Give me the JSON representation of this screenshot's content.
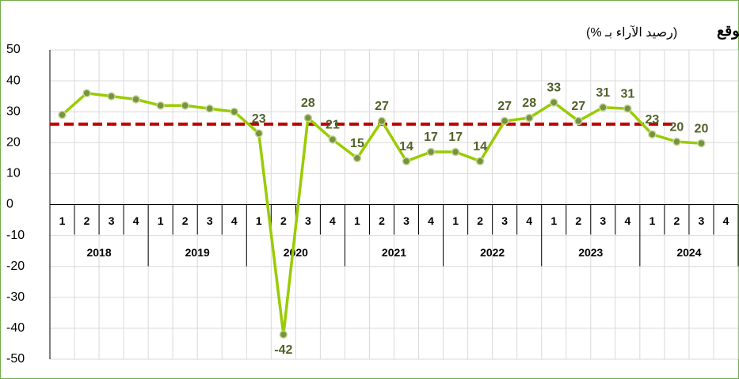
{
  "chart_data": {
    "type": "line",
    "title": "المؤشر المتوقع",
    "subtitle": "(رصيد الآراء بـ %)",
    "categories": [
      "1",
      "2",
      "3",
      "4",
      "1",
      "2",
      "3",
      "4",
      "1",
      "2",
      "3",
      "4",
      "1",
      "2",
      "3",
      "4",
      "1",
      "2",
      "3",
      "4",
      "1",
      "2",
      "3",
      "4",
      "1",
      "2",
      "3",
      "4"
    ],
    "years": [
      "2018",
      "2019",
      "2020",
      "2021",
      "2022",
      "2023",
      "2024"
    ],
    "series": [
      {
        "color": "#99cc00",
        "marker_color": "#77933c",
        "values": [
          29,
          36,
          35,
          34,
          32,
          32,
          31,
          30,
          23,
          -42,
          28,
          21,
          15,
          27,
          14,
          17,
          17,
          14,
          27,
          28,
          33,
          27,
          31.4,
          31,
          22.7,
          20.3,
          19.8,
          null
        ],
        "value_labels": [
          null,
          null,
          null,
          null,
          null,
          null,
          null,
          null,
          "23",
          "-42",
          "28",
          "21",
          "15",
          "27",
          "14",
          "17",
          "17",
          "14",
          "27",
          "28",
          "33",
          "27",
          "31",
          "31",
          "23",
          "20",
          "20",
          null
        ]
      }
    ],
    "reference_line": {
      "value": 26,
      "color": "#c00000"
    },
    "ylim": [
      -50,
      50
    ],
    "yticks": [
      50,
      40,
      30,
      20,
      10,
      0,
      -10,
      -20,
      -30,
      -40,
      -50
    ],
    "grid": true
  }
}
